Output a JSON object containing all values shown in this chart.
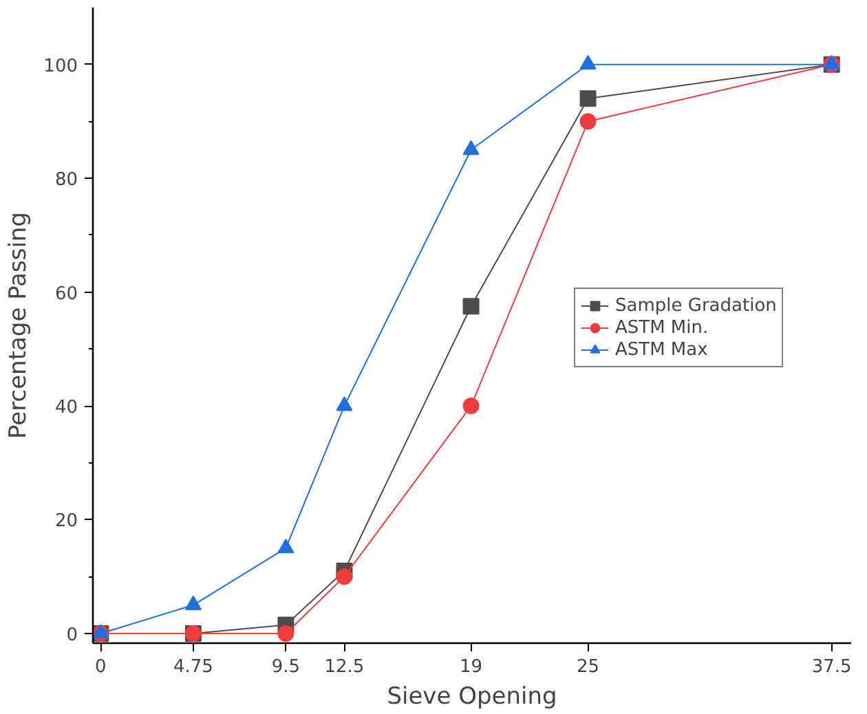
{
  "chart_data": {
    "type": "line",
    "xlabel": "Sieve Opening",
    "ylabel": "Percentage Passing",
    "x": [
      0,
      4.75,
      9.5,
      12.5,
      19,
      25,
      37.5
    ],
    "series": [
      {
        "name": "Sample Gradation",
        "color": "#4d4d4d",
        "marker": "square",
        "values": [
          0,
          0,
          1.5,
          11,
          57.5,
          94,
          100
        ]
      },
      {
        "name": "ASTM Min.",
        "color": "#f03c3c",
        "marker": "circle",
        "values": [
          0,
          0,
          0,
          10,
          40,
          90,
          100
        ]
      },
      {
        "name": "ASTM Max",
        "color": "#1f6fe0",
        "marker": "triangle",
        "values": [
          0,
          5,
          15,
          40,
          85,
          100,
          100
        ]
      }
    ],
    "xlim": [
      -0.4,
      38.5
    ],
    "ylim": [
      -1.7,
      110
    ],
    "xticks": [
      0,
      4.75,
      9.5,
      12.5,
      19,
      25,
      37.5
    ],
    "yticks": [
      0,
      20,
      40,
      60,
      80,
      100
    ],
    "grid": false,
    "legend": "right",
    "line_style": "solid"
  }
}
